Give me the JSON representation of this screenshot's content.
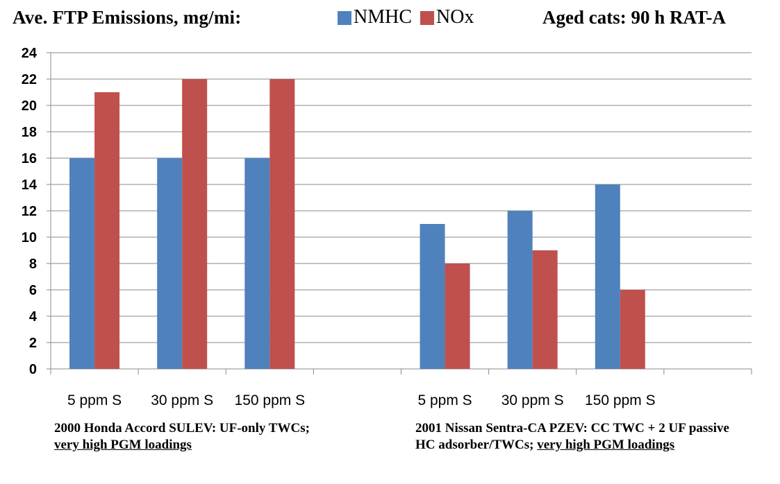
{
  "header": {
    "title": "Ave. FTP Emissions, mg/mi:",
    "subtitle": "Aged cats: 90 h RAT-A"
  },
  "captions": {
    "left": {
      "plain": "2000 Honda Accord SULEV: UF-only TWCs; ",
      "underlined": "very high PGM loadings"
    },
    "right": {
      "plain": "2001 Nissan Sentra-CA PZEV: CC TWC + 2 UF passive HC adsorber/TWCs; ",
      "underlined": "very high PGM loadings"
    }
  },
  "colors": {
    "nmhc": "#4F81BD",
    "nox": "#C0504D",
    "grid": "#8a8a8a",
    "axis": "#8a8a8a"
  },
  "chart_data": {
    "type": "bar",
    "title": "Ave. FTP Emissions, mg/mi:",
    "xlabel": "",
    "ylabel": "",
    "ylim": [
      0,
      24
    ],
    "yticks": [
      0,
      2,
      4,
      6,
      8,
      10,
      12,
      14,
      16,
      18,
      20,
      22,
      24
    ],
    "grid": true,
    "legend_position": "top",
    "categories": [
      "5 ppm S",
      "30 ppm S",
      "150 ppm S",
      "",
      "5 ppm S",
      "30 ppm S",
      "150 ppm S",
      ""
    ],
    "series": [
      {
        "name": "NMHC",
        "color": "#4F81BD",
        "values": [
          16,
          16,
          16,
          null,
          11,
          12,
          14,
          null
        ]
      },
      {
        "name": "NOx",
        "color": "#C0504D",
        "values": [
          21,
          22,
          22,
          null,
          8,
          9,
          6,
          null
        ]
      }
    ]
  }
}
